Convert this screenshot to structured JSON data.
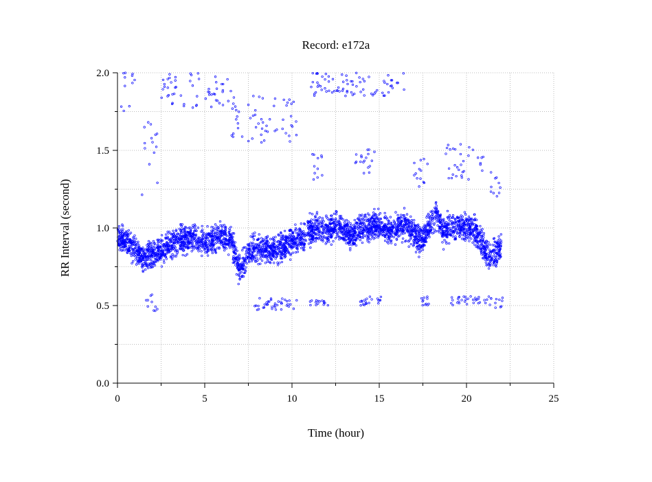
{
  "chart_data": {
    "type": "scatter",
    "title": "Record:  e172a",
    "xlabel": "Time (hour)",
    "ylabel": "RR Interval (second)",
    "xlim": [
      0,
      25
    ],
    "ylim": [
      0,
      2
    ],
    "xticks": [
      0,
      5,
      10,
      15,
      20,
      25
    ],
    "yticks": [
      0.0,
      0.5,
      1.0,
      1.5,
      2.0
    ],
    "xtick_labels": [
      "0",
      "5",
      "10",
      "15",
      "20",
      "25"
    ],
    "ytick_labels": [
      "0.0",
      "0.5",
      "1.0",
      "1.5",
      "2.0"
    ],
    "grid": true,
    "legend": "none",
    "marker": "open-circle",
    "series_color": "#0000ff",
    "grid_color": "#bbbbbb",
    "series": [
      {
        "segments": [
          {
            "t": [
              0.0,
              0.5,
              1.0,
              1.5,
              2.0,
              2.5,
              3.0,
              3.5,
              4.0,
              4.5,
              5.0,
              5.5,
              6.0,
              6.3,
              6.6,
              6.8,
              7.0,
              7.3,
              7.6,
              8.0,
              8.5,
              9.0,
              9.5,
              10.0,
              10.5,
              10.8
            ],
            "rr": [
              0.95,
              0.92,
              0.87,
              0.8,
              0.83,
              0.85,
              0.9,
              0.92,
              0.93,
              0.92,
              0.9,
              0.92,
              0.95,
              0.93,
              0.9,
              0.8,
              0.72,
              0.8,
              0.86,
              0.87,
              0.86,
              0.87,
              0.88,
              0.9,
              0.92,
              0.94
            ]
          },
          {
            "t": [
              10.9,
              11.5,
              12.0,
              12.5,
              13.0,
              13.5,
              14.0,
              14.5,
              15.0,
              15.5,
              16.0,
              16.5,
              17.0,
              17.5,
              18.0,
              18.3,
              18.6,
              19.0,
              19.5,
              20.0,
              20.5,
              20.8,
              21.0,
              21.5,
              22.0
            ],
            "rr": [
              0.98,
              0.99,
              0.97,
              1.02,
              0.98,
              0.95,
              1.0,
              1.0,
              1.02,
              0.99,
              1.0,
              1.02,
              0.95,
              0.92,
              1.05,
              1.1,
              0.98,
              1.0,
              1.02,
              1.0,
              0.98,
              0.93,
              0.85,
              0.82,
              0.88
            ]
          }
        ],
        "scatter_range": 0.1
      }
    ],
    "outlier_clusters": [
      {
        "t_range": [
          0.2,
          1.0
        ],
        "rr_range": [
          1.75,
          2.0
        ]
      },
      {
        "t_range": [
          2.5,
          6.5
        ],
        "rr_range": [
          1.75,
          2.0
        ]
      },
      {
        "t_range": [
          6.5,
          10.5
        ],
        "rr_range": [
          1.55,
          1.85
        ]
      },
      {
        "t_range": [
          11.0,
          16.5
        ],
        "rr_range": [
          1.85,
          2.0
        ]
      },
      {
        "t_range": [
          1.3,
          2.3
        ],
        "rr_range": [
          1.2,
          1.7
        ]
      },
      {
        "t_range": [
          11.1,
          11.9
        ],
        "rr_range": [
          1.3,
          1.48
        ]
      },
      {
        "t_range": [
          13.6,
          14.9
        ],
        "rr_range": [
          1.35,
          1.52
        ]
      },
      {
        "t_range": [
          16.9,
          17.8
        ],
        "rr_range": [
          1.25,
          1.45
        ]
      },
      {
        "t_range": [
          18.7,
          21.0
        ],
        "rr_range": [
          1.3,
          1.55
        ]
      },
      {
        "t_range": [
          21.3,
          22.0
        ],
        "rr_range": [
          1.15,
          1.4
        ]
      },
      {
        "t_range": [
          1.6,
          2.3
        ],
        "rr_range": [
          0.46,
          0.6
        ]
      },
      {
        "t_range": [
          7.6,
          10.3
        ],
        "rr_range": [
          0.47,
          0.55
        ]
      },
      {
        "t_range": [
          11.0,
          12.1
        ],
        "rr_range": [
          0.5,
          0.55
        ]
      },
      {
        "t_range": [
          13.7,
          15.1
        ],
        "rr_range": [
          0.5,
          0.56
        ]
      },
      {
        "t_range": [
          17.1,
          17.9
        ],
        "rr_range": [
          0.5,
          0.56
        ]
      },
      {
        "t_range": [
          19.1,
          21.5
        ],
        "rr_range": [
          0.5,
          0.56
        ]
      },
      {
        "t_range": [
          21.6,
          22.1
        ],
        "rr_range": [
          0.48,
          0.55
        ]
      }
    ]
  }
}
